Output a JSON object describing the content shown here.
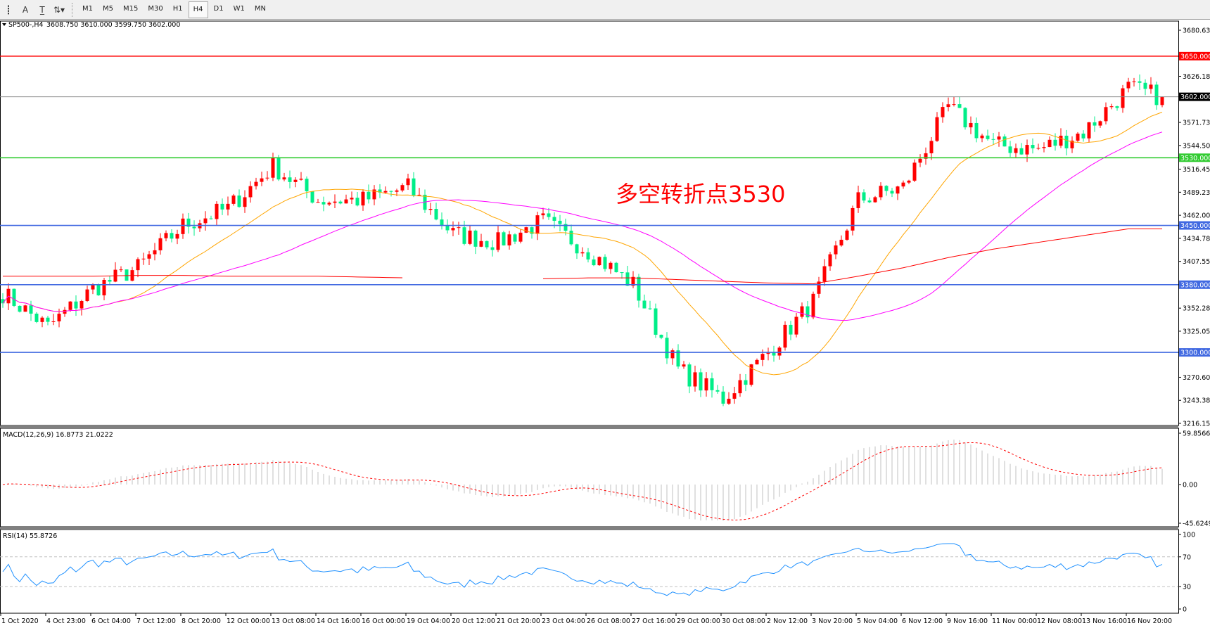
{
  "toolbar": {
    "icons": [
      "crosshair-icon",
      "text-a-icon",
      "text-label-icon",
      "arrows-icon"
    ],
    "timeframes": [
      "M1",
      "M5",
      "M15",
      "M30",
      "H1",
      "H4",
      "D1",
      "W1",
      "MN"
    ],
    "active_timeframe": "H4"
  },
  "chart": {
    "title": "SP500-,H4",
    "ohlc": "3608.750 3610.000 3599.750 3602.000",
    "annotation": "多空转折点3530",
    "annotation_color": "#ff0000",
    "price_axis": [
      "3680.630",
      "3626.180",
      "3571.730",
      "3544.505",
      "3516.455",
      "3489.230",
      "3462.005",
      "3434.780",
      "3407.555",
      "3352.280",
      "3325.055",
      "3270.605",
      "3243.380",
      "3216.155"
    ],
    "price_range": [
      3216.155,
      3680.63
    ],
    "levels": [
      {
        "price": 3650,
        "label": "3650.000",
        "color": "#ff0000"
      },
      {
        "price": 3602,
        "label": "3602.000",
        "color": "#000000",
        "line_color": "#8c8c8c"
      },
      {
        "price": 3530,
        "label": "3530.000",
        "color": "#33cc33"
      },
      {
        "price": 3450,
        "label": "3450.000",
        "color": "#4169e1"
      },
      {
        "price": 3380,
        "label": "3380.000",
        "color": "#4169e1"
      },
      {
        "price": 3300,
        "label": "3300.000",
        "color": "#4169e1"
      }
    ],
    "time_axis": [
      "1 Oct 2020",
      "4 Oct 23:00",
      "6 Oct 04:00",
      "7 Oct 12:00",
      "8 Oct 20:00",
      "12 Oct 00:00",
      "13 Oct 08:00",
      "14 Oct 16:00",
      "16 Oct 00:00",
      "19 Oct 04:00",
      "20 Oct 12:00",
      "21 Oct 20:00",
      "23 Oct 04:00",
      "26 Oct 08:00",
      "27 Oct 16:00",
      "29 Oct 00:00",
      "30 Oct 08:00",
      "2 Nov 12:00",
      "3 Nov 20:00",
      "5 Nov 04:00",
      "6 Nov 12:00",
      "9 Nov 16:00",
      "11 Nov 00:00",
      "12 Nov 08:00",
      "13 Nov 16:00",
      "16 Nov 20:00"
    ],
    "approx_close_at_time_labels": [
      3370,
      3330,
      3375,
      3400,
      3450,
      3470,
      3520,
      3480,
      3480,
      3495,
      3440,
      3430,
      3455,
      3420,
      3380,
      3280,
      3245,
      3300,
      3360,
      3480,
      3495,
      3590,
      3545,
      3540,
      3560,
      3612
    ],
    "last_close": 3602,
    "slow_ma_at_time_labels": [
      3390,
      3390,
      3390,
      3391,
      3391,
      3390,
      3390,
      3390,
      3389,
      3388,
      null,
      null,
      3387,
      3388,
      3388,
      3386,
      3384,
      3382,
      3381,
      3390,
      3400,
      3412,
      3422,
      3430,
      3438,
      3446
    ],
    "colors": {
      "up": "#ff0000",
      "down": "#00ee88",
      "ma_fast": "#ffa500",
      "ma_mid": "#ff00ff",
      "ma_slow": "#ff0000"
    }
  },
  "macd": {
    "label": "MACD(12,26,9) 16.8773 21.0222",
    "axis": [
      "59.8566",
      "0.00",
      "-45.6249"
    ],
    "range": [
      -45.6249,
      59.8566
    ]
  },
  "rsi": {
    "label": "RSI(14) 55.8726",
    "axis": [
      "100",
      "70",
      "30",
      "0"
    ],
    "levels": [
      70,
      30
    ]
  }
}
